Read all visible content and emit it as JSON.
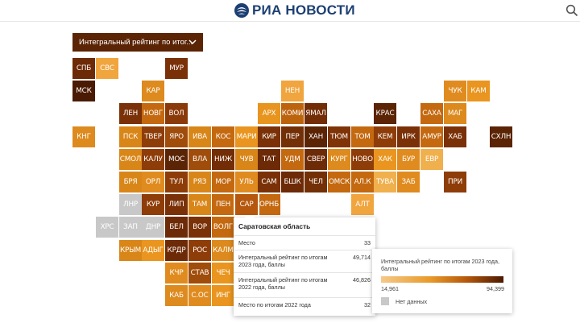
{
  "header": {
    "logo_text": "РИА НОВОСТИ",
    "logo_icon": "ria-globe-icon",
    "search_icon": "search-icon",
    "brand_color": "#1c3f73"
  },
  "filter": {
    "selected": "Интегральный рейтинг по итог...",
    "chevron_icon": "chevron-down-icon"
  },
  "map": {
    "regions": [
      {
        "label": "СПБ",
        "color": "#6d2a06",
        "row": 0,
        "col": 0
      },
      {
        "label": "СВС",
        "color": "#f0a53e",
        "row": 0,
        "col": 1
      },
      {
        "label": "МУР",
        "color": "#7a3107",
        "row": 0,
        "col": 4
      },
      {
        "label": "МСК",
        "color": "#4a1a03",
        "row": 1,
        "col": 0
      },
      {
        "label": "КАР",
        "color": "#dd8a1e",
        "row": 1,
        "col": 3
      },
      {
        "label": "НЕН",
        "color": "#f0a53e",
        "row": 1,
        "col": 9
      },
      {
        "label": "ЧУК",
        "color": "#e08b1f",
        "row": 1,
        "col": 16
      },
      {
        "label": "КАМ",
        "color": "#e9951f",
        "row": 1,
        "col": 17
      },
      {
        "label": "ЛЕН",
        "color": "#7a3107",
        "row": 2,
        "col": 2
      },
      {
        "label": "НОВГ",
        "color": "#c46910",
        "row": 2,
        "col": 3
      },
      {
        "label": "ВОЛ",
        "color": "#8a3a08",
        "row": 2,
        "col": 4
      },
      {
        "label": "АРХ",
        "color": "#e8951f",
        "row": 2,
        "col": 8
      },
      {
        "label": "КОМИ",
        "color": "#bc630e",
        "row": 2,
        "col": 9
      },
      {
        "label": "ЯМАЛ",
        "color": "#732d06",
        "row": 2,
        "col": 10
      },
      {
        "label": "КРАС",
        "color": "#5a2405",
        "row": 2,
        "col": 13
      },
      {
        "label": "САХА",
        "color": "#c46910",
        "row": 2,
        "col": 15
      },
      {
        "label": "МАГ",
        "color": "#dc8a1e",
        "row": 2,
        "col": 16
      },
      {
        "label": "КНГ",
        "color": "#dd8a1e",
        "row": 3,
        "col": 0
      },
      {
        "label": "ПСК",
        "color": "#d98619",
        "row": 3,
        "col": 2
      },
      {
        "label": "ТВЕР",
        "color": "#8e3d08",
        "row": 3,
        "col": 3
      },
      {
        "label": "ЯРО",
        "color": "#a04c0b",
        "row": 3,
        "col": 4
      },
      {
        "label": "ИВА",
        "color": "#d98619",
        "row": 3,
        "col": 5
      },
      {
        "label": "КОС",
        "color": "#c46910",
        "row": 3,
        "col": 6
      },
      {
        "label": "МАРИ",
        "color": "#e9951f",
        "row": 3,
        "col": 7
      },
      {
        "label": "КИР",
        "color": "#7a3107",
        "row": 3,
        "col": 8
      },
      {
        "label": "ПЕР",
        "color": "#733006",
        "row": 3,
        "col": 9
      },
      {
        "label": "ХАН",
        "color": "#5a2405",
        "row": 3,
        "col": 10
      },
      {
        "label": "ТЮМ",
        "color": "#7f3407",
        "row": 3,
        "col": 11
      },
      {
        "label": "ТОМ",
        "color": "#c46910",
        "row": 3,
        "col": 12
      },
      {
        "label": "КЕМ",
        "color": "#8e3d08",
        "row": 3,
        "col": 13
      },
      {
        "label": "ИРК",
        "color": "#7a3107",
        "row": 3,
        "col": 14
      },
      {
        "label": "АМУР",
        "color": "#c46910",
        "row": 3,
        "col": 15
      },
      {
        "label": "ХАБ",
        "color": "#7a3107",
        "row": 3,
        "col": 16
      },
      {
        "label": "СХЛН",
        "color": "#5a2405",
        "row": 3,
        "col": 18
      },
      {
        "label": "СМОЛ",
        "color": "#d98619",
        "row": 4,
        "col": 2
      },
      {
        "label": "КАЛУ",
        "color": "#8e3d08",
        "row": 4,
        "col": 3
      },
      {
        "label": "МОС",
        "color": "#5a2405",
        "row": 4,
        "col": 4
      },
      {
        "label": "ВЛА",
        "color": "#a04c0b",
        "row": 4,
        "col": 5
      },
      {
        "label": "НИЖ",
        "color": "#732d06",
        "row": 4,
        "col": 6
      },
      {
        "label": "ЧУВ",
        "color": "#d98619",
        "row": 4,
        "col": 7
      },
      {
        "label": "ТАТ",
        "color": "#6d2a06",
        "row": 4,
        "col": 8
      },
      {
        "label": "УДМ",
        "color": "#c46910",
        "row": 4,
        "col": 9
      },
      {
        "label": "СВЕР",
        "color": "#6d2a06",
        "row": 4,
        "col": 10
      },
      {
        "label": "КУРГ",
        "color": "#dd8a1e",
        "row": 4,
        "col": 11
      },
      {
        "label": "НОВО",
        "color": "#8e3d08",
        "row": 4,
        "col": 12
      },
      {
        "label": "ХАК",
        "color": "#e9951f",
        "row": 4,
        "col": 13
      },
      {
        "label": "БУР",
        "color": "#e08b1f",
        "row": 4,
        "col": 14
      },
      {
        "label": "ЕВР",
        "color": "#f0b04e",
        "row": 4,
        "col": 15
      },
      {
        "label": "БРЯ",
        "color": "#d98619",
        "row": 5,
        "col": 2
      },
      {
        "label": "ОРЛ",
        "color": "#e08b1f",
        "row": 5,
        "col": 3
      },
      {
        "label": "ТУЛ",
        "color": "#8e3d08",
        "row": 5,
        "col": 4
      },
      {
        "label": "РЯЗ",
        "color": "#d98619",
        "row": 5,
        "col": 5
      },
      {
        "label": "МОР",
        "color": "#c46910",
        "row": 5,
        "col": 6
      },
      {
        "label": "УЛЬ",
        "color": "#e08b1f",
        "row": 5,
        "col": 7
      },
      {
        "label": "САМ",
        "color": "#7a3107",
        "row": 5,
        "col": 8
      },
      {
        "label": "БШК",
        "color": "#6d2a06",
        "row": 5,
        "col": 9
      },
      {
        "label": "ЧЕЛ",
        "color": "#733006",
        "row": 5,
        "col": 10
      },
      {
        "label": "ОМСК",
        "color": "#c46910",
        "row": 5,
        "col": 11
      },
      {
        "label": "АЛ.К",
        "color": "#c46910",
        "row": 5,
        "col": 12
      },
      {
        "label": "ТУВА",
        "color": "#f0b04e",
        "row": 5,
        "col": 13
      },
      {
        "label": "ЗАБ",
        "color": "#e08b1f",
        "row": 5,
        "col": 14
      },
      {
        "label": "ПРИ",
        "color": "#8e3d08",
        "row": 5,
        "col": 16
      },
      {
        "label": "ЛНР",
        "color": "#c8c8c8",
        "row": 6,
        "col": 2
      },
      {
        "label": "КУР",
        "color": "#8e3d08",
        "row": 6,
        "col": 3
      },
      {
        "label": "ЛИП",
        "color": "#7a3107",
        "row": 6,
        "col": 4
      },
      {
        "label": "ТАМ",
        "color": "#d98619",
        "row": 6,
        "col": 5
      },
      {
        "label": "ПЕН",
        "color": "#c46910",
        "row": 6,
        "col": 6
      },
      {
        "label": "САР",
        "color": "#b5570c",
        "row": 6,
        "col": 7
      },
      {
        "label": "ОРНБ",
        "color": "#c46910",
        "row": 6,
        "col": 8
      },
      {
        "label": "АЛТ",
        "color": "#f0a53e",
        "row": 6,
        "col": 12
      },
      {
        "label": "ХРС",
        "color": "#c8c8c8",
        "row": 7,
        "col": 1
      },
      {
        "label": "ЗАП",
        "color": "#c8c8c8",
        "row": 7,
        "col": 2
      },
      {
        "label": "ДНР",
        "color": "#c8c8c8",
        "row": 7,
        "col": 3
      },
      {
        "label": "БЕЛ",
        "color": "#6d2a06",
        "row": 7,
        "col": 4
      },
      {
        "label": "ВОР",
        "color": "#7a3107",
        "row": 7,
        "col": 5
      },
      {
        "label": "ВОЛГ",
        "color": "#c46910",
        "row": 7,
        "col": 6
      },
      {
        "label": "КРЫМ",
        "color": "#d98619",
        "row": 8,
        "col": 2
      },
      {
        "label": "АДЫГ",
        "color": "#e9951f",
        "row": 8,
        "col": 3
      },
      {
        "label": "КРДР",
        "color": "#6d2a06",
        "row": 8,
        "col": 4
      },
      {
        "label": "РОС",
        "color": "#8e3d08",
        "row": 8,
        "col": 5
      },
      {
        "label": "КАЛМ",
        "color": "#dc8a1e",
        "row": 8,
        "col": 6
      },
      {
        "label": "КЧР",
        "color": "#e08b1f",
        "row": 9,
        "col": 4
      },
      {
        "label": "СТАВ",
        "color": "#a04c0b",
        "row": 9,
        "col": 5
      },
      {
        "label": "ЧЕЧ",
        "color": "#e9951f",
        "row": 9,
        "col": 6
      },
      {
        "label": "КАБ",
        "color": "#dd8a1e",
        "row": 10,
        "col": 4
      },
      {
        "label": "С.ОС",
        "color": "#e08b1f",
        "row": 10,
        "col": 5
      },
      {
        "label": "ИНГ",
        "color": "#e9951f",
        "row": 10,
        "col": 6
      }
    ]
  },
  "tooltip": {
    "title": "Саратовская область",
    "rows": [
      {
        "label": "Место",
        "value": "33"
      },
      {
        "label": "Интегральный рейтинг по итогам 2023 года, баллы",
        "value": "49,714"
      },
      {
        "label": "Интегральный рейтинг по итогам 2022 года, баллы",
        "value": "46,826"
      },
      {
        "label": "Место по итогам 2022 года",
        "value": "32"
      }
    ]
  },
  "legend": {
    "title": "Интегральный рейтинг по итогам 2023 года, баллы",
    "min": "14,961",
    "max": "94,399",
    "no_data": "Нет данных",
    "no_data_color": "#c8c8c8"
  }
}
